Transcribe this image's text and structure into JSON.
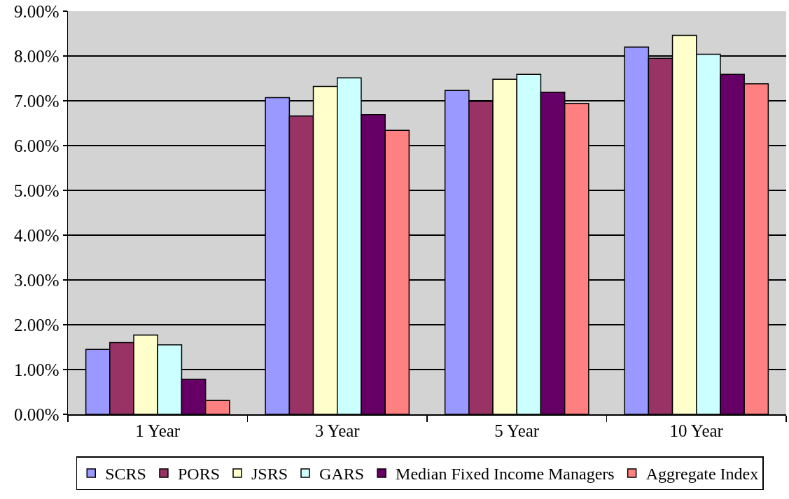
{
  "chart_data": {
    "type": "bar",
    "categories": [
      "1 Year",
      "3 Year",
      "5 Year",
      "10 Year"
    ],
    "series": [
      {
        "name": "SCRS",
        "color": "#9999ff",
        "values": [
          1.45,
          7.07,
          7.23,
          8.2
        ]
      },
      {
        "name": "PORS",
        "color": "#993366",
        "values": [
          1.6,
          6.66,
          6.99,
          7.95
        ]
      },
      {
        "name": "JSRS",
        "color": "#ffffcc",
        "values": [
          1.77,
          7.32,
          7.48,
          8.46
        ]
      },
      {
        "name": "GARS",
        "color": "#ccffff",
        "values": [
          1.55,
          7.51,
          7.59,
          8.04
        ]
      },
      {
        "name": "Median Fixed Income Managers",
        "color": "#660066",
        "values": [
          0.78,
          6.69,
          7.19,
          7.59
        ]
      },
      {
        "name": "Aggregate Index",
        "color": "#ff8080",
        "values": [
          0.31,
          6.34,
          6.94,
          7.38
        ]
      }
    ],
    "ylim": [
      0,
      9
    ],
    "yticks": [
      {
        "value": 0,
        "label": "0.00%"
      },
      {
        "value": 1,
        "label": "1.00%"
      },
      {
        "value": 2,
        "label": "2.00%"
      },
      {
        "value": 3,
        "label": "3.00%"
      },
      {
        "value": 4,
        "label": "4.00%"
      },
      {
        "value": 5,
        "label": "5.00%"
      },
      {
        "value": 6,
        "label": "6.00%"
      },
      {
        "value": 7,
        "label": "7.00%"
      },
      {
        "value": 8,
        "label": "8.00%"
      },
      {
        "value": 9,
        "label": "9.00%"
      }
    ],
    "grid": "y",
    "legend": "bottom"
  }
}
